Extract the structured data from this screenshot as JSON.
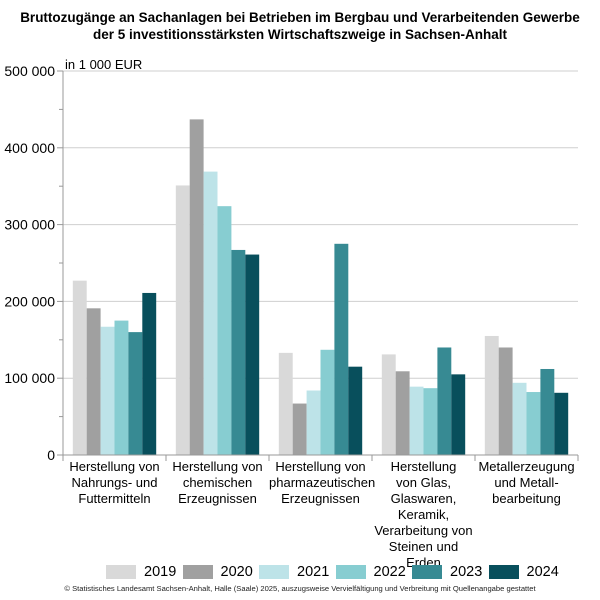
{
  "chart_data": {
    "type": "bar",
    "title_lines": [
      "Bruttozugänge an Sachanlagen bei Betrieben im Bergbau und Verarbeitenden Gewerbe",
      "der 5 investitionsstärksten Wirtschaftszweige in Sachsen-Anhalt"
    ],
    "unit_label": "in 1 000 EUR",
    "ylim": [
      0,
      500000
    ],
    "y_ticks": [
      0,
      100000,
      200000,
      300000,
      400000,
      500000
    ],
    "y_tick_labels": [
      "0",
      "100 000",
      "200 000",
      "300 000",
      "400 000",
      "500 000"
    ],
    "grid": true,
    "categories": [
      [
        "Herstellung von",
        "Nahrungs- und",
        "Futtermitteln"
      ],
      [
        "Herstellung von",
        "chemischen",
        "Erzeugnissen"
      ],
      [
        "Herstellung von",
        "pharmazeutischen",
        "Erzeugnissen"
      ],
      [
        "Herstellung",
        "von Glas,",
        "Glaswaren,",
        "Keramik,",
        "Verarbeitung von",
        "Steinen und Erden"
      ],
      [
        "Metallerzeugung",
        "und Metall-",
        "bearbeitung"
      ]
    ],
    "series": [
      {
        "name": "2019",
        "color": "#d9d9d9",
        "values": [
          227000,
          351000,
          133000,
          131000,
          155000
        ]
      },
      {
        "name": "2020",
        "color": "#a0a0a0",
        "values": [
          191000,
          437000,
          67000,
          109000,
          140000
        ]
      },
      {
        "name": "2021",
        "color": "#bde3e8",
        "values": [
          167000,
          369000,
          84000,
          89000,
          94000
        ]
      },
      {
        "name": "2022",
        "color": "#87cdd1",
        "values": [
          175000,
          324000,
          137000,
          87000,
          82000
        ]
      },
      {
        "name": "2023",
        "color": "#378a93",
        "values": [
          160000,
          267000,
          275000,
          140000,
          112000
        ]
      },
      {
        "name": "2024",
        "color": "#084f5c",
        "values": [
          211000,
          261000,
          115000,
          105000,
          81000
        ]
      }
    ],
    "legend_position": "bottom"
  },
  "footer": "© Statistisches Landesamt Sachsen-Anhalt, Halle (Saale) 2025, auszugsweise Vervielfältigung und Verbreitung mit Quellenangabe gestattet"
}
